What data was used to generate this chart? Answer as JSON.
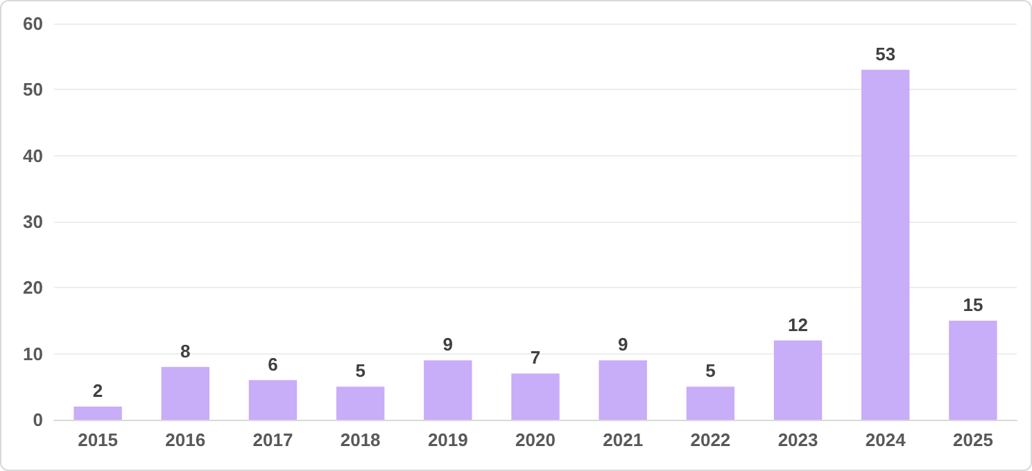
{
  "chart_data": {
    "type": "bar",
    "categories": [
      "2015",
      "2016",
      "2017",
      "2018",
      "2019",
      "2020",
      "2021",
      "2022",
      "2023",
      "2024",
      "2025"
    ],
    "values": [
      2,
      8,
      6,
      5,
      9,
      7,
      9,
      5,
      12,
      53,
      15
    ],
    "color": "#c8adf8",
    "ylim": [
      0,
      60
    ],
    "yticks": [
      0,
      10,
      20,
      30,
      40,
      50,
      60
    ],
    "grid": "y",
    "data_labels": true
  }
}
